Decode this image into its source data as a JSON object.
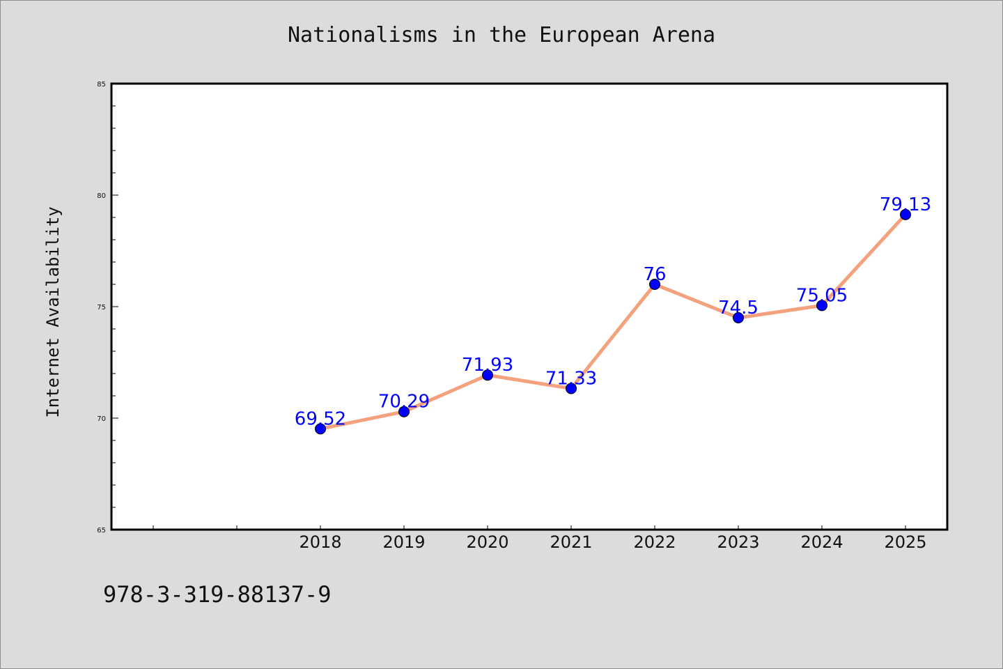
{
  "chart_data": {
    "type": "line",
    "title": "Nationalisms in the European Arena",
    "xlabel": "",
    "ylabel": "Internet Availability",
    "categories": [
      "2018",
      "2019",
      "2020",
      "2021",
      "2022",
      "2023",
      "2024",
      "2025"
    ],
    "series": [
      {
        "values": [
          69.52,
          70.29,
          71.93,
          71.33,
          76,
          74.5,
          75.05,
          79.13
        ],
        "data_labels": [
          "69.52",
          "70.29",
          "71.93",
          "71.33",
          "76",
          "74.5",
          "75.05",
          "79.13"
        ]
      }
    ],
    "ylim": [
      65,
      85
    ],
    "yticks": [
      65,
      70,
      75,
      80,
      85
    ],
    "grid": false,
    "colors": {
      "line": "#f4a27e",
      "marker": "#0000ff",
      "data_label": "#0000ff",
      "background": "#dcdcdc",
      "plot_background": "#ffffff"
    }
  },
  "footer": {
    "code": "978-3-319-88137-9"
  }
}
